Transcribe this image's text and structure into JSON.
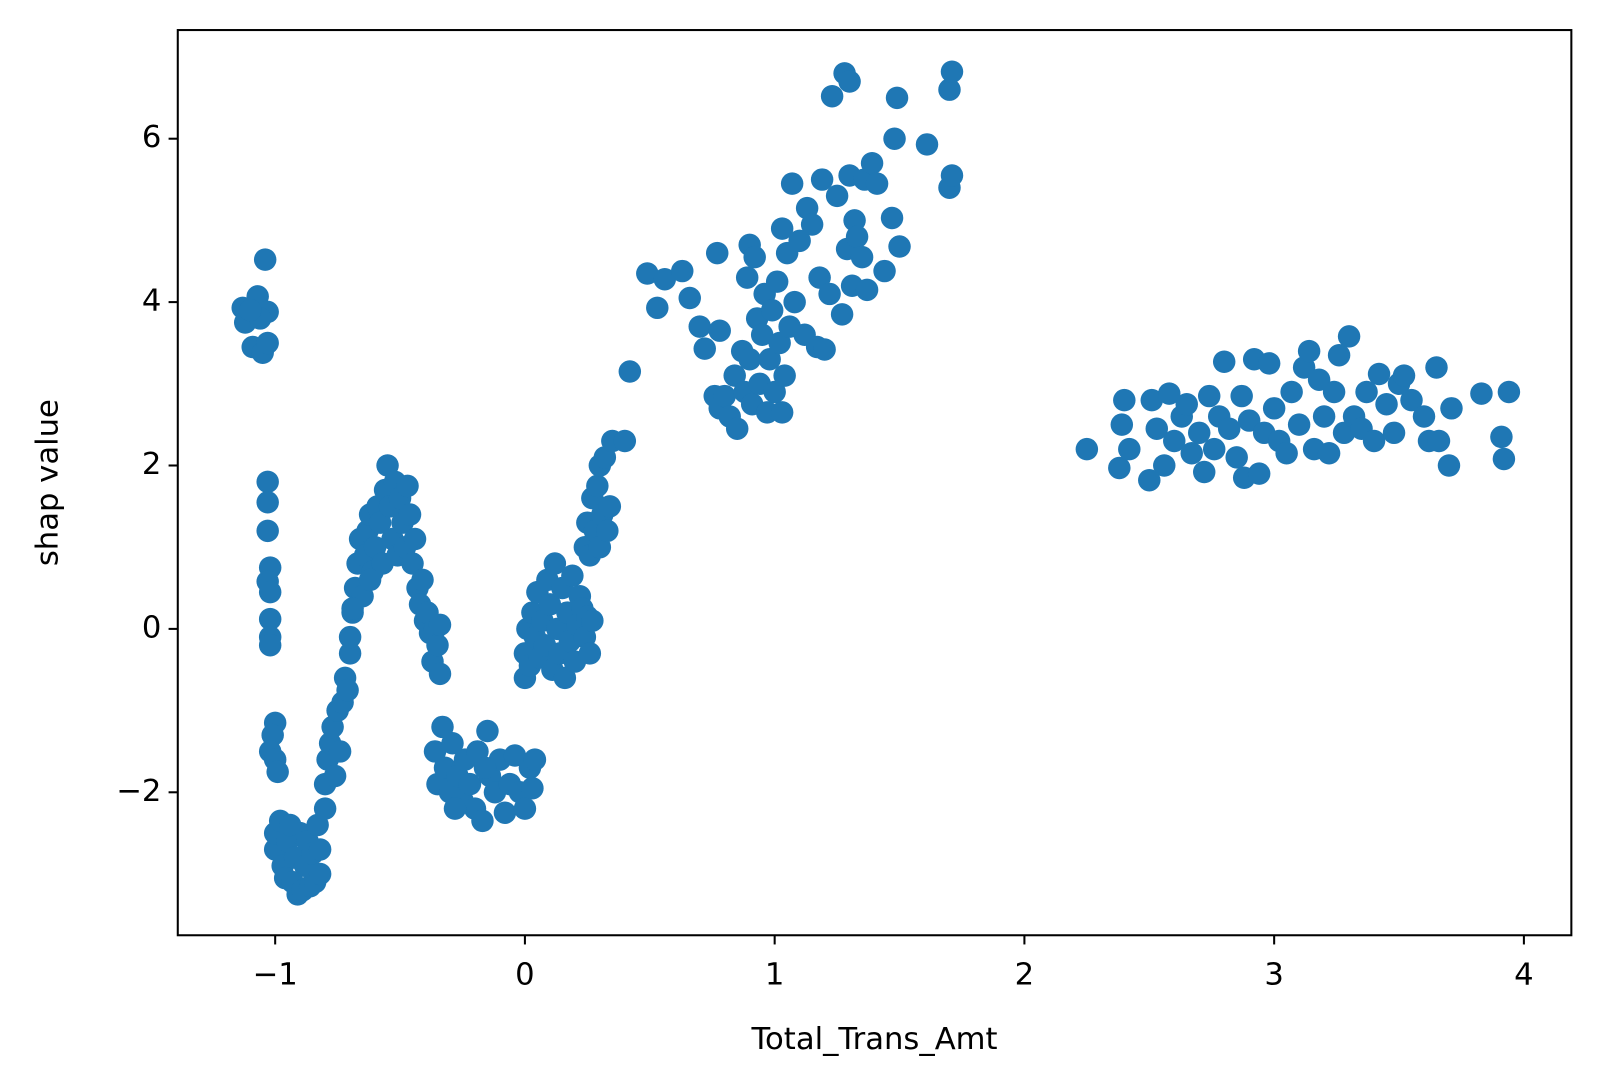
{
  "chart_data": {
    "type": "scatter",
    "xlabel": "Total_Trans_Amt",
    "ylabel": "shap value",
    "color": "#1f77b4",
    "xlim": [
      -1.39,
      4.19
    ],
    "ylim": [
      -3.75,
      7.33
    ],
    "xticks": [
      {
        "value": -1,
        "label": "−1"
      },
      0,
      1,
      2,
      3,
      4
    ],
    "yticks": [
      {
        "value": -2,
        "label": "−2"
      },
      0,
      2,
      4,
      6
    ],
    "x": [
      -1.13,
      -1.12,
      -1.09,
      -1.07,
      -1.05,
      -1.04,
      -1.03,
      -1.03,
      -1.06,
      -1.1,
      -1.03,
      -1.03,
      -1.03,
      -1.02,
      -1.03,
      -1.02,
      -1.02,
      -1.02,
      -1.02,
      -1.0,
      -1.01,
      -1.02,
      -1.0,
      -0.99,
      -1.0,
      -1.0,
      -0.98,
      -0.97,
      -0.96,
      -0.95,
      -0.93,
      -0.92,
      -0.91,
      -0.9,
      -0.89,
      -0.88,
      -0.87,
      -0.86,
      -0.85,
      -0.84,
      -0.83,
      -0.82,
      -0.82,
      -0.94,
      -0.8,
      -0.8,
      -0.79,
      -0.78,
      -0.77,
      -0.76,
      -0.75,
      -0.74,
      -0.73,
      -0.72,
      -0.71,
      -0.7,
      -0.7,
      -0.69,
      -0.68,
      -0.67,
      -0.66,
      -0.65,
      -0.64,
      -0.63,
      -0.62,
      -0.61,
      -0.6,
      -0.59,
      -0.58,
      -0.57,
      -0.56,
      -0.55,
      -0.54,
      -0.53,
      -0.52,
      -0.51,
      -0.5,
      -0.49,
      -0.48,
      -0.47,
      -0.46,
      -0.45,
      -0.44,
      -0.43,
      -0.42,
      -0.41,
      -0.4,
      -0.39,
      -0.38,
      -0.37,
      -0.36,
      -0.35,
      -0.34,
      -0.34,
      -0.69,
      -0.62,
      -0.36,
      -0.35,
      -0.33,
      -0.32,
      -0.3,
      -0.29,
      -0.27,
      -0.25,
      -0.24,
      -0.22,
      -0.2,
      -0.19,
      -0.17,
      -0.15,
      -0.14,
      -0.12,
      -0.1,
      -0.08,
      -0.06,
      -0.04,
      -0.02,
      0.0,
      0.02,
      0.03,
      0.04,
      -0.28,
      -0.16,
      0.0,
      0.0,
      0.01,
      0.02,
      0.03,
      0.04,
      0.05,
      0.06,
      0.07,
      0.08,
      0.09,
      0.1,
      0.11,
      0.12,
      0.13,
      0.14,
      0.15,
      0.16,
      0.17,
      0.18,
      0.19,
      0.2,
      0.21,
      0.22,
      0.23,
      0.24,
      0.25,
      0.26,
      0.27,
      0.24,
      0.25,
      0.26,
      0.27,
      0.28,
      0.29,
      0.3,
      0.3,
      0.31,
      0.32,
      0.33,
      0.34,
      0.35,
      0.4,
      0.42,
      0.49,
      0.53,
      0.56,
      0.63,
      0.66,
      0.7,
      0.72,
      0.76,
      0.77,
      0.78,
      0.78,
      0.8,
      0.82,
      0.84,
      0.85,
      0.87,
      0.88,
      0.89,
      0.9,
      0.9,
      0.91,
      0.92,
      0.93,
      0.94,
      0.95,
      0.96,
      0.97,
      0.98,
      0.99,
      1.0,
      1.01,
      1.02,
      1.03,
      1.03,
      1.04,
      1.05,
      1.06,
      1.07,
      1.08,
      1.1,
      1.12,
      1.13,
      1.15,
      1.17,
      1.18,
      1.19,
      1.2,
      1.22,
      1.23,
      1.25,
      1.27,
      1.28,
      1.29,
      1.3,
      1.3,
      1.31,
      1.32,
      1.33,
      1.35,
      1.36,
      1.37,
      1.39,
      1.41,
      1.44,
      1.47,
      1.48,
      1.49,
      1.5,
      1.61,
      1.7,
      1.7,
      1.71,
      1.71,
      2.25,
      2.38,
      2.39,
      2.4,
      2.42,
      2.5,
      2.51,
      2.53,
      2.56,
      2.58,
      2.6,
      2.63,
      2.65,
      2.67,
      2.7,
      2.72,
      2.74,
      2.76,
      2.78,
      2.8,
      2.82,
      2.85,
      2.87,
      2.88,
      2.9,
      2.92,
      2.94,
      2.96,
      2.98,
      3.0,
      3.02,
      3.05,
      3.07,
      3.1,
      3.12,
      3.14,
      3.16,
      3.18,
      3.2,
      3.22,
      3.24,
      3.26,
      3.28,
      3.3,
      3.32,
      3.35,
      3.37,
      3.4,
      3.42,
      3.45,
      3.48,
      3.5,
      3.52,
      3.55,
      3.6,
      3.62,
      3.65,
      3.66,
      3.7,
      3.71,
      3.83,
      3.91,
      3.92,
      3.94
    ],
    "y": [
      3.93,
      3.75,
      3.45,
      4.07,
      3.38,
      4.52,
      3.88,
      3.5,
      3.8,
      3.9,
      1.8,
      1.55,
      1.2,
      0.75,
      0.58,
      0.45,
      0.12,
      -0.1,
      -0.2,
      -1.15,
      -1.3,
      -1.5,
      -1.6,
      -1.75,
      -2.7,
      -2.5,
      -2.35,
      -2.9,
      -3.05,
      -2.6,
      -3.1,
      -2.8,
      -3.25,
      -2.5,
      -3.2,
      -2.9,
      -2.6,
      -3.15,
      -2.75,
      -3.1,
      -2.4,
      -3.0,
      -2.7,
      -2.4,
      -2.2,
      -1.9,
      -1.6,
      -1.4,
      -1.2,
      -1.8,
      -1.0,
      -1.5,
      -0.9,
      -0.6,
      -0.75,
      -0.3,
      -0.1,
      0.2,
      0.5,
      0.8,
      1.1,
      0.4,
      0.9,
      1.2,
      1.4,
      0.7,
      1.0,
      1.5,
      1.3,
      0.8,
      1.7,
      2.0,
      1.5,
      1.1,
      1.8,
      0.9,
      1.6,
      1.3,
      1.0,
      1.75,
      1.4,
      0.8,
      1.1,
      0.5,
      0.3,
      0.6,
      0.1,
      0.2,
      -0.05,
      -0.4,
      0.0,
      -0.2,
      -0.55,
      0.05,
      0.25,
      0.6,
      -1.5,
      -1.9,
      -1.2,
      -1.7,
      -2.0,
      -1.4,
      -1.8,
      -2.1,
      -1.6,
      -1.9,
      -2.2,
      -1.5,
      -2.35,
      -1.25,
      -1.8,
      -2.0,
      -1.6,
      -2.25,
      -1.9,
      -1.55,
      -2.0,
      -2.2,
      -1.7,
      -1.95,
      -1.6,
      -2.2,
      -1.7,
      -0.6,
      -0.3,
      0.0,
      -0.45,
      0.2,
      -0.1,
      0.45,
      -0.35,
      0.1,
      -0.2,
      0.6,
      0.3,
      -0.5,
      0.8,
      0.0,
      -0.3,
      0.5,
      -0.6,
      0.2,
      -0.15,
      0.65,
      -0.4,
      0.05,
      0.4,
      0.25,
      -0.1,
      0.15,
      -0.3,
      0.1,
      1.0,
      1.3,
      0.9,
      1.6,
      1.2,
      1.75,
      1.0,
      2.0,
      1.4,
      2.1,
      1.2,
      1.5,
      2.3,
      2.3,
      3.15,
      4.35,
      3.93,
      4.28,
      4.38,
      4.05,
      3.7,
      3.43,
      2.85,
      4.6,
      3.65,
      2.7,
      2.85,
      2.6,
      3.1,
      2.45,
      3.4,
      2.9,
      4.3,
      4.7,
      3.3,
      2.75,
      4.55,
      3.8,
      3.0,
      3.6,
      4.1,
      2.65,
      3.3,
      3.9,
      2.9,
      4.25,
      3.5,
      4.9,
      2.65,
      3.1,
      4.6,
      3.7,
      5.45,
      4.0,
      4.75,
      3.6,
      5.15,
      4.95,
      3.45,
      4.3,
      5.5,
      3.42,
      4.1,
      6.52,
      5.3,
      3.85,
      6.8,
      4.65,
      5.55,
      6.7,
      4.2,
      5.0,
      4.8,
      4.55,
      5.5,
      4.15,
      5.7,
      5.45,
      4.38,
      5.03,
      6.0,
      6.5,
      4.68,
      5.93,
      6.6,
      5.4,
      6.82,
      5.55,
      2.2,
      1.97,
      2.5,
      2.8,
      2.2,
      1.82,
      2.8,
      2.45,
      2.0,
      2.88,
      2.3,
      2.6,
      2.75,
      2.15,
      2.4,
      1.92,
      2.85,
      2.2,
      2.6,
      3.27,
      2.45,
      2.1,
      2.85,
      1.85,
      2.55,
      3.3,
      1.9,
      2.4,
      3.25,
      2.7,
      2.3,
      2.15,
      2.9,
      2.5,
      3.2,
      3.4,
      2.2,
      3.05,
      2.6,
      2.15,
      2.9,
      3.35,
      2.4,
      3.58,
      2.6,
      2.45,
      2.9,
      2.3,
      3.12,
      2.75,
      2.4,
      3.0,
      3.1,
      2.8,
      2.6,
      2.3,
      3.2,
      2.3,
      2.0,
      2.7,
      2.88,
      2.35,
      2.08,
      2.9
    ]
  }
}
